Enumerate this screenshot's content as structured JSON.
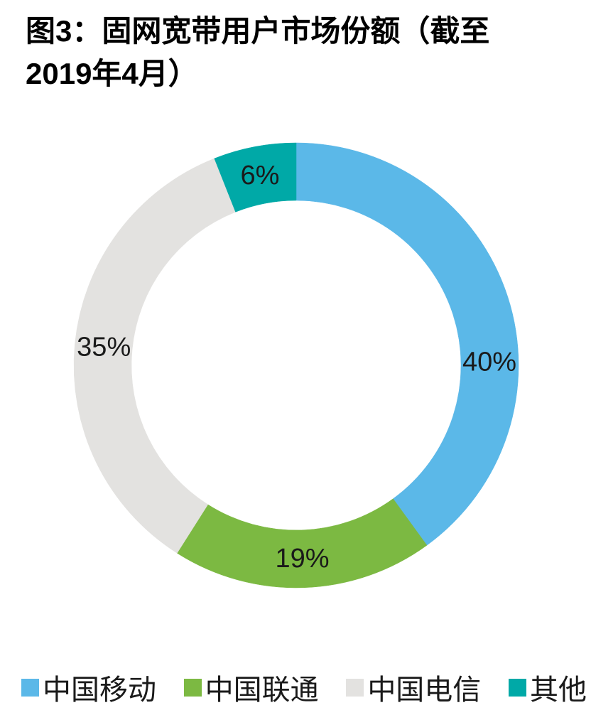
{
  "header": {
    "title_line1": "图3：固网宽带用户市场份额（截至",
    "title_line2": "2019年4月）"
  },
  "chart_data": {
    "type": "pie",
    "subtype": "donut",
    "title": "图3：固网宽带用户市场份额（截至2019年4月）",
    "categories": [
      "中国移动",
      "中国联通",
      "中国电信",
      "其他"
    ],
    "values": [
      40,
      19,
      35,
      6
    ],
    "unit": "%",
    "data_labels": [
      "40%",
      "19%",
      "35%",
      "6%"
    ],
    "colors": [
      "#5BB8E8",
      "#7CB942",
      "#E3E2E0",
      "#00A9A7"
    ],
    "start_angle_deg": 0,
    "direction": "clockwise",
    "hole_ratio": 0.74,
    "grid": false,
    "legend_position": "bottom",
    "label_angle_overrides": [
      89,
      null,
      null,
      null
    ],
    "label_color": "#1a1a1a"
  }
}
